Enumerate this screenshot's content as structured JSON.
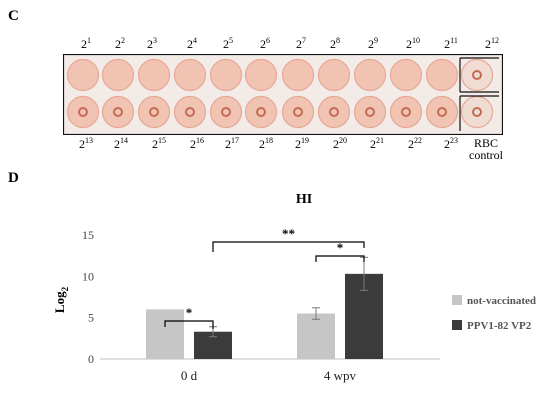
{
  "panel_c": {
    "letter": "C",
    "top_row_exponents": [
      "1",
      "2",
      "3",
      "4",
      "5",
      "6",
      "7",
      "8",
      "9",
      "10",
      "11",
      "12"
    ],
    "bottom_row_exponents": [
      "13",
      "14",
      "15",
      "16",
      "17",
      "18",
      "19",
      "20",
      "21",
      "22",
      "23"
    ],
    "base": "2",
    "rbc_label_line1": "RBC",
    "rbc_label_line2": "control",
    "colors": {
      "plate_bg": "#f3ebe7",
      "well": "#f1c3b2",
      "well_rim": "#e6a996",
      "dot": "#c46a55"
    }
  },
  "panel_d": {
    "letter": "D",
    "chart_data": {
      "type": "bar",
      "title": "HI",
      "xlabel": "",
      "ylabel": "Log2",
      "ylabel_main": "Log",
      "ylabel_sub": "2",
      "ylim": [
        0,
        15
      ],
      "yticks": [
        "0",
        "5",
        "10",
        "15"
      ],
      "categories": [
        "0 d",
        "4 wpv"
      ],
      "series": [
        {
          "name": "not-vaccinated",
          "color": "#c6c6c6",
          "values": [
            6.0,
            5.5
          ],
          "errors": [
            0.0,
            0.7
          ]
        },
        {
          "name": "PPV1-82 VP2",
          "color": "#3b3b3b",
          "values": [
            3.3,
            10.3
          ],
          "errors": [
            0.6,
            2.0
          ]
        }
      ],
      "significance": [
        {
          "label": "*",
          "between": "0 d: not-vaccinated vs PPV1-82 VP2"
        },
        {
          "label": "*",
          "between": "4 wpv: not-vaccinated vs PPV1-82 VP2"
        },
        {
          "label": "**",
          "between": "PPV1-82 VP2: 0 d vs 4 wpv"
        }
      ],
      "legend_position": "right",
      "grid": false
    }
  }
}
